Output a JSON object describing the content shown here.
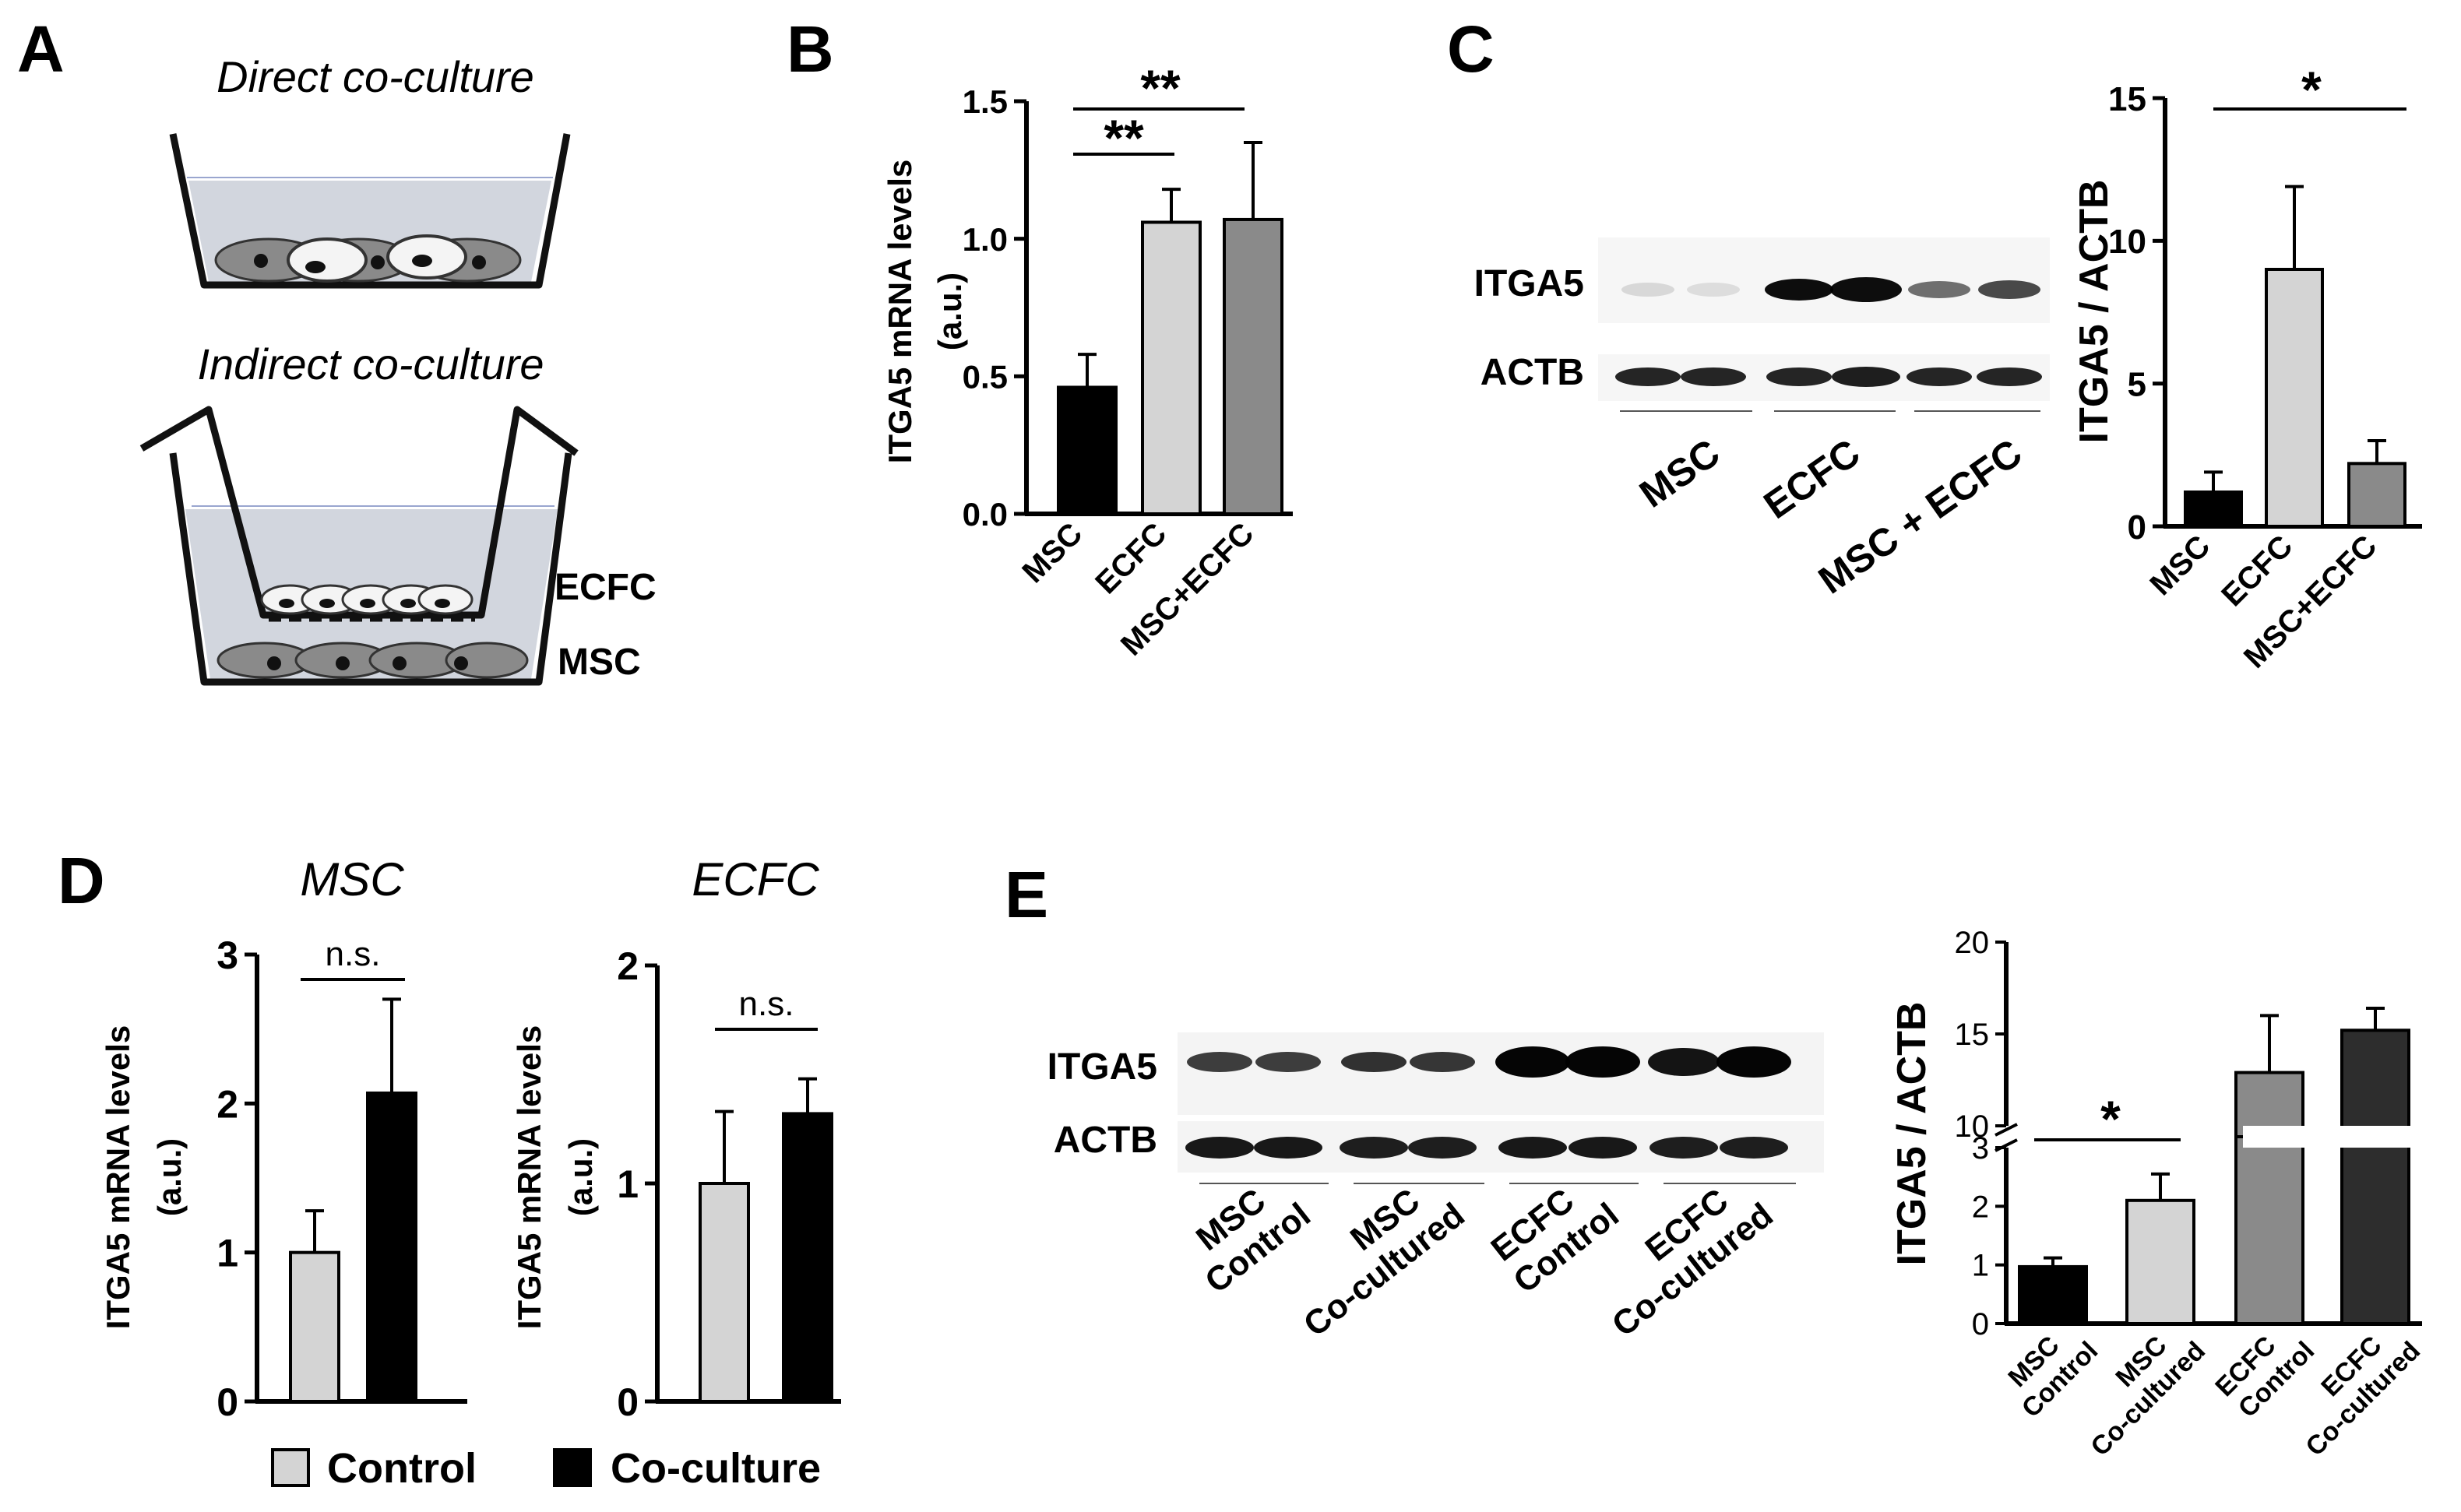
{
  "panels": {
    "A": {
      "letter": "A",
      "direct_title": "Direct co-culture",
      "indirect_title": "Indirect co-culture",
      "label_ecfc": "ECFC",
      "label_msc": "MSC"
    },
    "B": {
      "letter": "B"
    },
    "C": {
      "letter": "C",
      "blot_rows": [
        "ITGA5",
        "ACTB"
      ],
      "blot_groups": [
        "MSC",
        "ECFC",
        "MSC + ECFC"
      ]
    },
    "D": {
      "letter": "D"
    },
    "E": {
      "letter": "E",
      "blot_rows": [
        "ITGA5",
        "ACTB"
      ],
      "blot_groups": [
        [
          "MSC",
          "Control"
        ],
        [
          "MSC",
          "Co-cultured"
        ],
        [
          "ECFC",
          "Control"
        ],
        [
          "ECFC",
          "Co-cultured"
        ]
      ]
    }
  },
  "legend": {
    "items": [
      "Control",
      "Co-culture"
    ]
  },
  "colors": {
    "black": "#000000",
    "light_gray": "#d4d4d4",
    "mid_gray": "#8a8a8a",
    "dark_gray": "#2d2d2d",
    "medium_blue_line": "#9aa6cf"
  },
  "chart_data": [
    {
      "id": "B",
      "type": "bar",
      "categories": [
        "MSC",
        "ECFC",
        "MSC+ECFC"
      ],
      "values": [
        0.46,
        1.06,
        1.07
      ],
      "errors": [
        0.12,
        0.12,
        0.28
      ],
      "ylabel": [
        "ITGA5 mRNA levels",
        "(a.u.)"
      ],
      "ylim": [
        0,
        1.5
      ],
      "yticks": [
        "0.0",
        "0.5",
        "1.0",
        "1.5"
      ],
      "annotations": [
        "**",
        "**"
      ]
    },
    {
      "id": "C",
      "type": "bar",
      "categories": [
        "MSC",
        "ECFC",
        "MSC+ECFC"
      ],
      "values": [
        1.2,
        9.0,
        2.2
      ],
      "errors": [
        0.7,
        2.9,
        0.8
      ],
      "ylabel": [
        "ITGA5 / ACTB"
      ],
      "ylim": [
        0,
        15
      ],
      "yticks": [
        "0",
        "5",
        "10",
        "15"
      ],
      "annotations": [
        "*"
      ]
    },
    {
      "id": "D-MSC",
      "type": "bar",
      "title": "MSC",
      "categories": [
        "Control",
        "Co-culture"
      ],
      "values": [
        1.0,
        2.07
      ],
      "errors": [
        0.28,
        0.63
      ],
      "ylabel": [
        "ITGA5 mRNA levels",
        "(a.u.)"
      ],
      "ylim": [
        0,
        3
      ],
      "yticks": [
        "0",
        "1",
        "2",
        "3"
      ],
      "annotations": [
        "n.s."
      ]
    },
    {
      "id": "D-ECFC",
      "type": "bar",
      "title": "ECFC",
      "categories": [
        "Control",
        "Co-culture"
      ],
      "values": [
        1.0,
        1.32
      ],
      "errors": [
        0.33,
        0.16
      ],
      "ylabel": [
        "ITGA5 mRNA levels",
        "(a.u.)"
      ],
      "ylim": [
        0,
        2
      ],
      "yticks": [
        "0",
        "1",
        "2"
      ],
      "annotations": [
        "n.s."
      ]
    },
    {
      "id": "E",
      "type": "bar",
      "categories": [
        [
          "MSC",
          "Control"
        ],
        [
          "MSC",
          "Co-cultured"
        ],
        [
          "ECFC",
          "Control"
        ],
        [
          "ECFC",
          "Co-cultured"
        ]
      ],
      "values": [
        0.97,
        2.1,
        12.9,
        15.2
      ],
      "errors": [
        0.15,
        0.45,
        3.1,
        1.2
      ],
      "ylabel": [
        "ITGA5 / ACTB"
      ],
      "ylim": [
        0,
        20
      ],
      "axis_break": [
        3,
        10
      ],
      "yticks": [
        "0",
        "1",
        "2",
        "3",
        "10",
        "15",
        "20"
      ],
      "annotations": [
        "*"
      ]
    }
  ]
}
